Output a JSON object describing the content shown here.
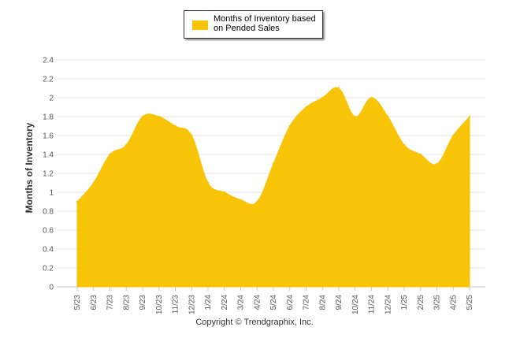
{
  "chart_data": {
    "type": "area",
    "categories": [
      "5/23",
      "6/23",
      "7/23",
      "8/23",
      "9/23",
      "10/23",
      "11/23",
      "12/23",
      "1/24",
      "2/24",
      "3/24",
      "4/24",
      "5/24",
      "6/24",
      "7/24",
      "8/24",
      "9/24",
      "10/24",
      "11/24",
      "12/24",
      "1/25",
      "2/25",
      "3/25",
      "4/25",
      "5/25"
    ],
    "series": [
      {
        "name": "Months of Inventory based on Pended Sales",
        "color": "#F7C408",
        "values": [
          0.9,
          1.1,
          1.4,
          1.5,
          1.8,
          1.8,
          1.7,
          1.6,
          1.1,
          1.0,
          0.92,
          0.9,
          1.3,
          1.7,
          1.9,
          2.0,
          2.1,
          1.8,
          2.0,
          1.8,
          1.5,
          1.4,
          1.3,
          1.6,
          1.8
        ]
      }
    ],
    "ylabel": "Months of Inventory",
    "xlabel": "",
    "ylim": [
      0,
      2.4
    ],
    "yticks": [
      "0",
      "0.2",
      "0.4",
      "0.6",
      "0.8",
      "1",
      "1.2",
      "1.4",
      "1.6",
      "1.8",
      "2",
      "2.2",
      "2.4"
    ],
    "grid": "horizontal",
    "legend_position": "top-center"
  },
  "legend": {
    "label": "Months of Inventory based on Pended Sales"
  },
  "footer": {
    "copyright": "Copyright © Trendgraphix, Inc."
  }
}
